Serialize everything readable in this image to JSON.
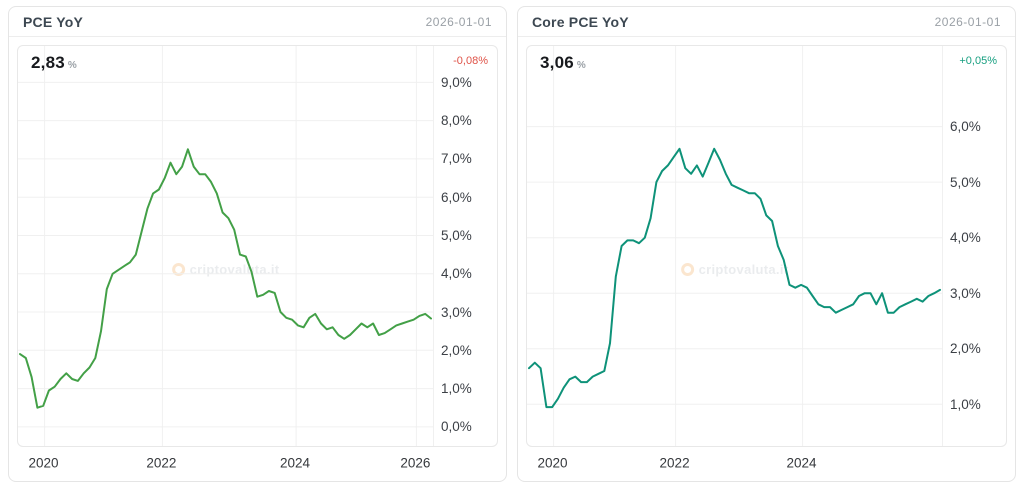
{
  "panels": [
    {
      "title": "PCE YoY",
      "date": "2026-01-01",
      "value": "2,83",
      "value_suffix": "%",
      "change": "-0,08%",
      "change_style": "color:#df5247",
      "watermark": "criptovaluta.it"
    },
    {
      "title": "Core PCE YoY",
      "date": "2026-01-01",
      "value": "3,06",
      "value_suffix": "%",
      "change": "+0,05%",
      "change_style": "color:#169f80",
      "watermark": "criptovaluta.it"
    }
  ],
  "chart_data": [
    {
      "type": "line",
      "title": "PCE YoY",
      "x_start": "2020-01",
      "x_interval": "monthly",
      "values": [
        1.9,
        1.8,
        1.3,
        0.5,
        0.55,
        0.95,
        1.05,
        1.25,
        1.4,
        1.25,
        1.2,
        1.4,
        1.55,
        1.8,
        2.5,
        3.6,
        4.0,
        4.1,
        4.2,
        4.3,
        4.5,
        5.1,
        5.7,
        6.1,
        6.2,
        6.5,
        6.9,
        6.6,
        6.8,
        7.25,
        6.8,
        6.6,
        6.6,
        6.4,
        6.1,
        5.6,
        5.45,
        5.15,
        4.5,
        4.45,
        4.05,
        3.4,
        3.45,
        3.55,
        3.5,
        3.0,
        2.85,
        2.8,
        2.65,
        2.6,
        2.85,
        2.95,
        2.7,
        2.55,
        2.6,
        2.4,
        2.3,
        2.4,
        2.55,
        2.7,
        2.6,
        2.7,
        2.4,
        2.45,
        2.55,
        2.65,
        2.7,
        2.75,
        2.8,
        2.9,
        2.95,
        2.83
      ],
      "last_value": 2.83,
      "change_pct": -0.08,
      "ylim": [
        -0.5,
        9.95
      ],
      "grid": true,
      "grid_color": "#f0f0f0",
      "line_color": "#43a047",
      "yticks": [
        {
          "label": "9,0%",
          "value": 9
        },
        {
          "label": "8,0%",
          "value": 8
        },
        {
          "label": "7,0%",
          "value": 7
        },
        {
          "label": "6,0%",
          "value": 6
        },
        {
          "label": "5,0%",
          "value": 5
        },
        {
          "label": "4,0%",
          "value": 4
        },
        {
          "label": "3,0%",
          "value": 3
        },
        {
          "label": "2,0%",
          "value": 2
        },
        {
          "label": "1,0%",
          "value": 1
        },
        {
          "label": "0,0%",
          "value": 0
        }
      ],
      "xticks": [
        {
          "label": "2020",
          "pos": 6.4
        },
        {
          "label": "2022",
          "pos": 34.8
        },
        {
          "label": "2024",
          "pos": 67.0
        },
        {
          "label": "2026",
          "pos": 96.0
        }
      ]
    },
    {
      "type": "line",
      "title": "Core PCE YoY",
      "x_start": "2020-01",
      "x_interval": "monthly",
      "values": [
        1.65,
        1.75,
        1.65,
        0.95,
        0.95,
        1.1,
        1.3,
        1.45,
        1.5,
        1.4,
        1.4,
        1.5,
        1.55,
        1.6,
        2.1,
        3.3,
        3.85,
        3.95,
        3.95,
        3.9,
        4.0,
        4.35,
        5.0,
        5.2,
        5.3,
        5.45,
        5.6,
        5.25,
        5.15,
        5.3,
        5.1,
        5.35,
        5.6,
        5.4,
        5.15,
        4.95,
        4.9,
        4.85,
        4.8,
        4.8,
        4.7,
        4.4,
        4.3,
        3.85,
        3.6,
        3.15,
        3.1,
        3.15,
        3.1,
        2.95,
        2.8,
        2.75,
        2.75,
        2.65,
        2.7,
        2.75,
        2.8,
        2.95,
        3.0,
        3.0,
        2.8,
        3.0,
        2.65,
        2.65,
        2.75,
        2.8,
        2.85,
        2.9,
        2.85,
        2.95,
        3.0,
        3.06
      ],
      "last_value": 3.06,
      "change_pct": 0.05,
      "ylim": [
        0.25,
        7.45
      ],
      "grid": true,
      "grid_color": "#f0f0f0",
      "line_color": "#0e9279",
      "yticks": [
        {
          "label": "6,0%",
          "value": 6
        },
        {
          "label": "5,0%",
          "value": 5
        },
        {
          "label": "4,0%",
          "value": 4
        },
        {
          "label": "3,0%",
          "value": 3
        },
        {
          "label": "2,0%",
          "value": 2
        },
        {
          "label": "1,0%",
          "value": 1
        }
      ],
      "xticks": [
        {
          "label": "2020",
          "pos": 6.4
        },
        {
          "label": "2022",
          "pos": 35.8
        },
        {
          "label": "2024",
          "pos": 66.4
        }
      ]
    }
  ]
}
